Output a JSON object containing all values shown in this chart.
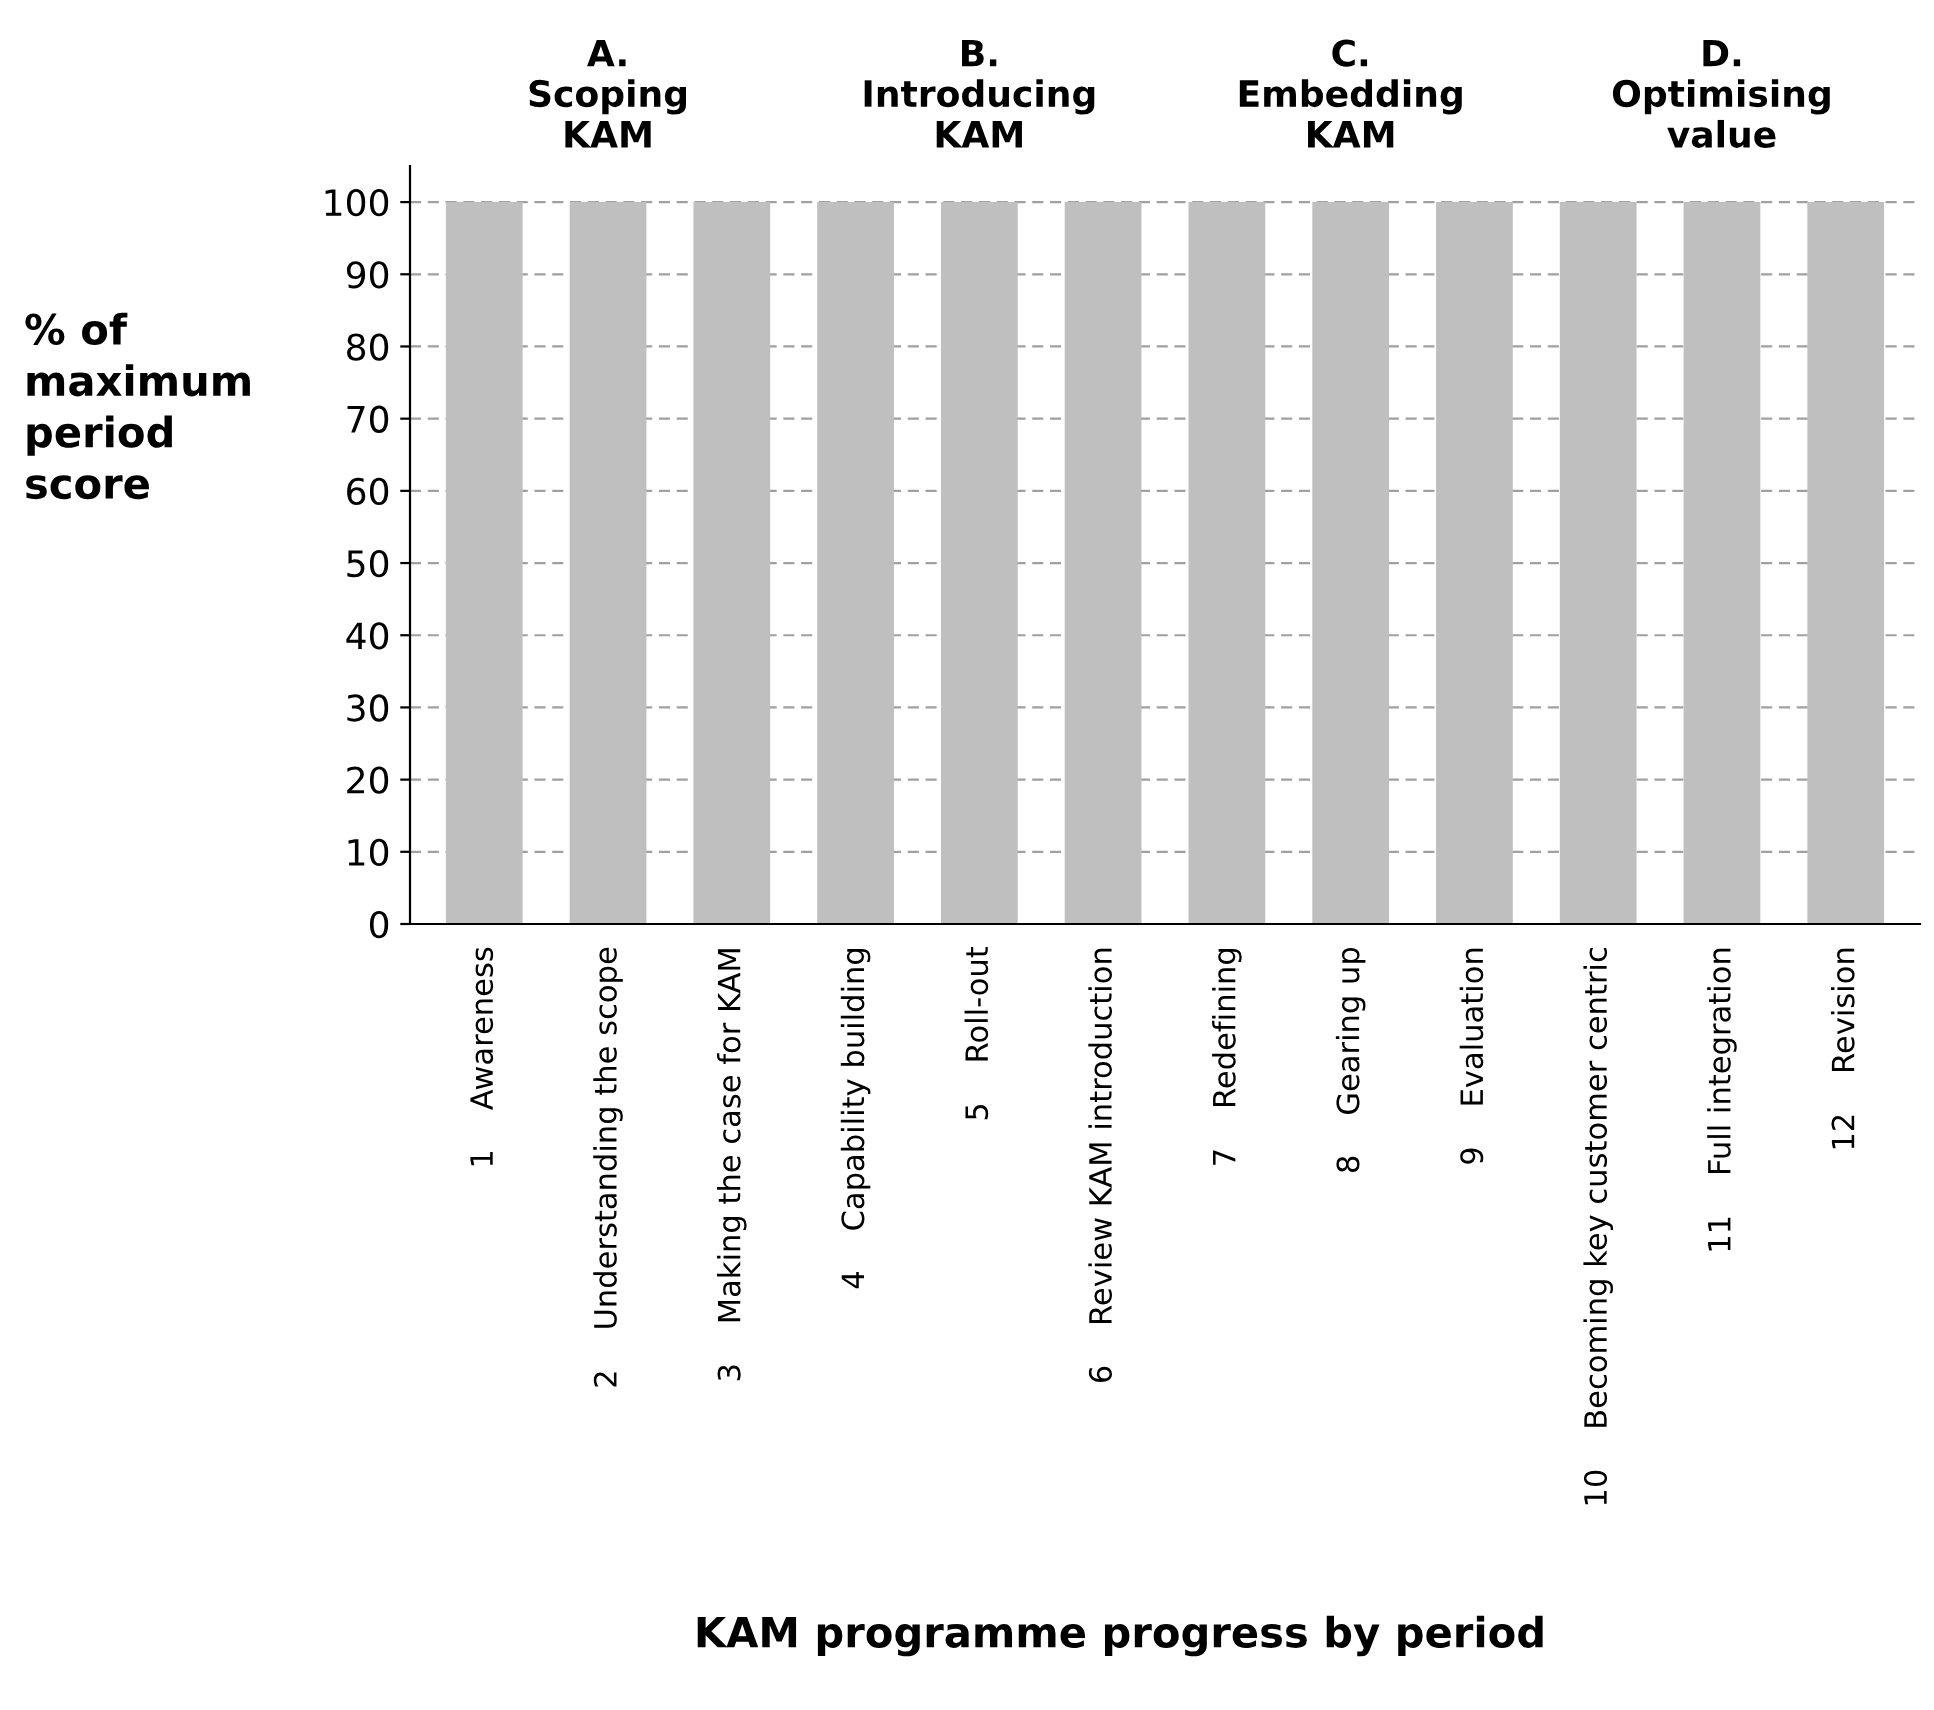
{
  "chart_data": {
    "type": "bar",
    "categories": [
      "1    Awareness",
      "2    Understanding the scope",
      "3    Making the case for KAM",
      "4    Capability building",
      "5    Roll-out",
      "6    Review KAM introduction",
      "7    Redefining",
      "8    Gearing up",
      "9    Evaluation",
      "10    Becoming key customer centric",
      "11    Full integration",
      "12    Revision"
    ],
    "values": [
      100,
      100,
      100,
      100,
      100,
      100,
      100,
      100,
      100,
      100,
      100,
      100
    ],
    "color": "#bfbfbf",
    "ylim": [
      0,
      105
    ],
    "yticks": [
      0,
      10,
      20,
      30,
      40,
      50,
      60,
      70,
      80,
      90,
      100
    ],
    "ylabel": "% of\nmaximum\nperiod\nscore",
    "xlabel": "KAM programme progress by period",
    "annotations": [
      "A.\nScoping\nKAM",
      "B.\nIntroducing\nKAM",
      "C.\nEmbedding\nKAM",
      "D.\nOptimising\nvalue"
    ],
    "grid": "y"
  }
}
